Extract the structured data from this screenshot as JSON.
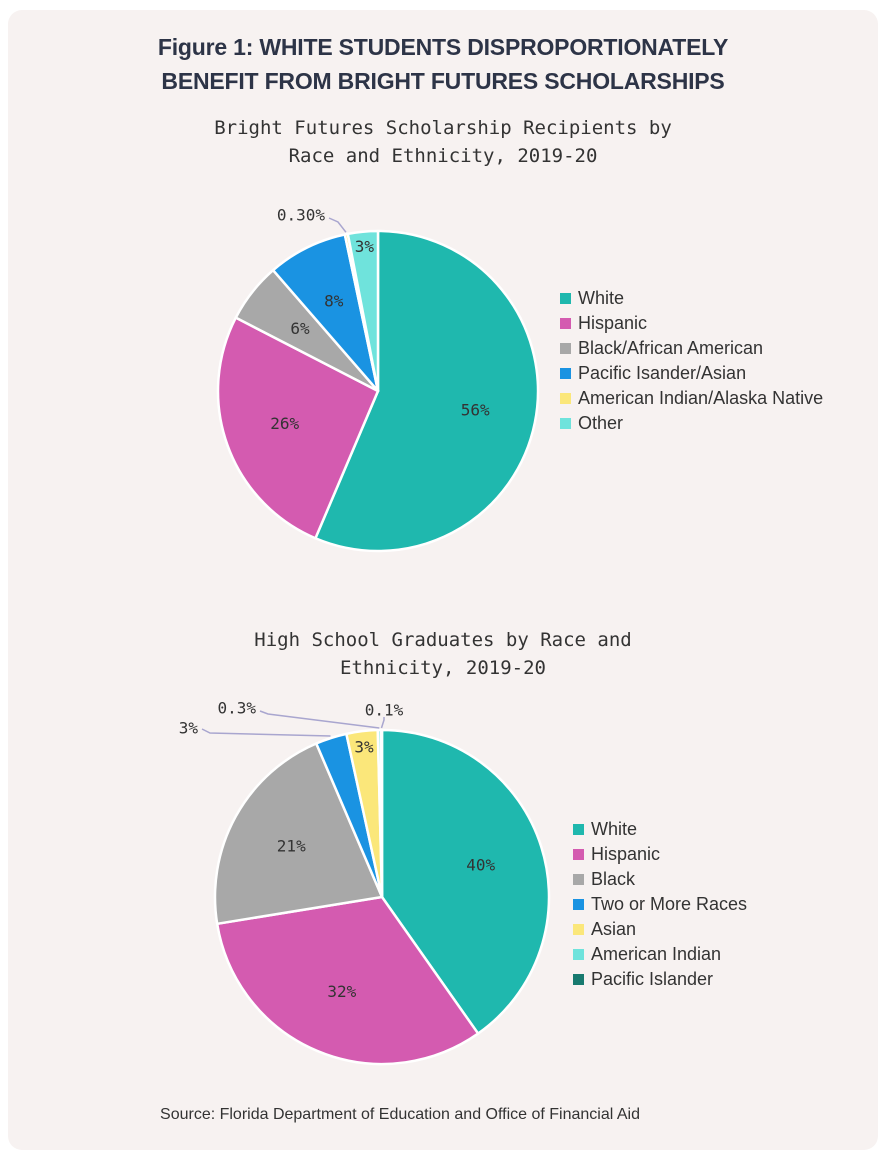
{
  "figure": {
    "title_line1": "Figure 1: WHITE STUDENTS DISPROPORTIONATELY",
    "title_line2": "BENEFIT FROM BRIGHT FUTURES SCHOLARSHIPS",
    "source": "Source: Florida Department of Education and Office of Financial Aid"
  },
  "chart_data": [
    {
      "type": "pie",
      "title_line1": "Bright Futures Scholarship Recipients by",
      "title_line2": "Race and Ethnicity, 2019-20",
      "slices": [
        {
          "name": "White",
          "value": 56,
          "label": "56%",
          "color": "#1fb8ae"
        },
        {
          "name": "Hispanic",
          "value": 26,
          "label": "26%",
          "color": "#d45bb0"
        },
        {
          "name": "Black/African American",
          "value": 6,
          "label": "6%",
          "color": "#a8a8a8"
        },
        {
          "name": "Pacific Isander/Asian",
          "value": 8,
          "label": "8%",
          "color": "#1a93e2"
        },
        {
          "name": "American Indian/Alaska Native",
          "value": 0.3,
          "label": "0.30%",
          "color": "#fbe77a"
        },
        {
          "name": "Other",
          "value": 3,
          "label": "3%",
          "color": "#6fe3dc"
        }
      ]
    },
    {
      "type": "pie",
      "title_line1": "High School Graduates by Race and",
      "title_line2": "Ethnicity, 2019-20",
      "slices": [
        {
          "name": "White",
          "value": 40,
          "label": "40%",
          "color": "#1fb8ae"
        },
        {
          "name": "Hispanic",
          "value": 32,
          "label": "32%",
          "color": "#d45bb0"
        },
        {
          "name": "Black",
          "value": 21,
          "label": "21%",
          "color": "#a8a8a8"
        },
        {
          "name": "Two or More Races",
          "value": 3,
          "label": "3%",
          "color": "#1a93e2"
        },
        {
          "name": "Asian",
          "value": 3,
          "label": "3%",
          "color": "#fbe77a"
        },
        {
          "name": "American Indian",
          "value": 0.3,
          "label": "0.3%",
          "color": "#6fe3dc"
        },
        {
          "name": "Pacific Islander",
          "value": 0.1,
          "label": "0.1%",
          "color": "#187a6f"
        }
      ]
    }
  ]
}
